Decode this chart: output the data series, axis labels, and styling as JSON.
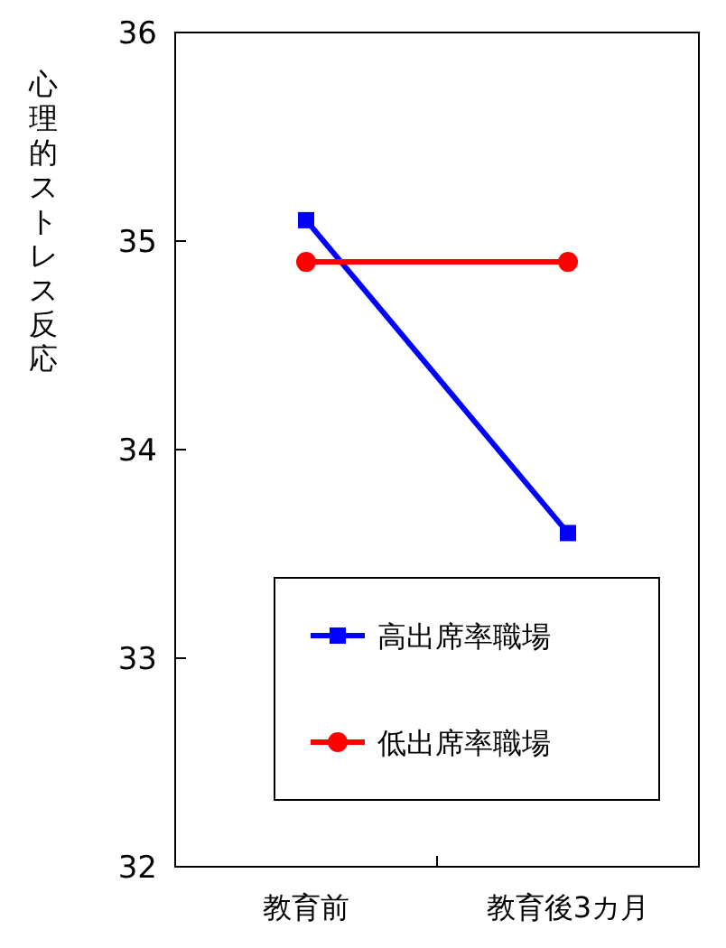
{
  "chart_data": {
    "type": "line",
    "ylabel": "心理的ストレス反応",
    "categories": [
      "教育前",
      "教育後3カ月"
    ],
    "series": [
      {
        "name": "高出席率職場",
        "color": "#0000ff",
        "values": [
          35.1,
          33.6
        ],
        "marker": "square"
      },
      {
        "name": "低出席率職場",
        "color": "#ff0000",
        "values": [
          34.9,
          34.9
        ],
        "marker": "circle"
      }
    ],
    "ylim": [
      32,
      36
    ],
    "yticks": [
      32,
      33,
      34,
      35,
      36
    ],
    "legend": "bottom right",
    "grid": false
  }
}
